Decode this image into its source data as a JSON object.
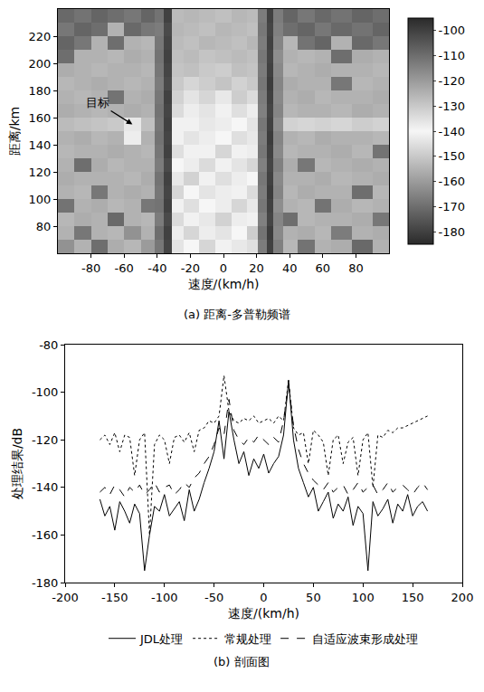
{
  "chart_data": [
    {
      "type": "heatmap",
      "title": "(a) 距离-多普勒频谱",
      "x_label": "速度/(km/h)",
      "y_label": "距离/km",
      "x": [
        -95,
        -85,
        -75,
        -65,
        -55,
        -45,
        -38,
        -34,
        -28,
        -20,
        -10,
        0,
        10,
        18,
        24,
        28,
        32,
        40,
        50,
        60,
        70,
        85,
        95
      ],
      "y": [
        65,
        75,
        85,
        95,
        105,
        115,
        125,
        135,
        145,
        155,
        165,
        175,
        185,
        195,
        205,
        215,
        225,
        235
      ],
      "z": [
        [
          -118,
          -125,
          -110,
          -124,
          -126,
          -120,
          -112,
          -101,
          -136,
          -140,
          -133,
          -141,
          -137,
          -135,
          -113,
          -100,
          -114,
          -126,
          -111,
          -125,
          -124,
          -109,
          -125
        ],
        [
          -125,
          -112,
          -125,
          -126,
          -118,
          -125,
          -110,
          -100,
          -138,
          -133,
          -142,
          -136,
          -140,
          -131,
          -111,
          -99,
          -116,
          -125,
          -124,
          -126,
          -113,
          -125,
          -124
        ],
        [
          -126,
          -124,
          -125,
          -109,
          -125,
          -126,
          -113,
          -102,
          -134,
          -141,
          -137,
          -132,
          -138,
          -139,
          -114,
          -101,
          -115,
          -110,
          -126,
          -125,
          -125,
          -124,
          -112
        ],
        [
          -111,
          -125,
          -124,
          -126,
          -125,
          -112,
          -111,
          -100,
          -139,
          -135,
          -140,
          -138,
          -133,
          -137,
          -112,
          -100,
          -117,
          -125,
          -126,
          -111,
          -124,
          -126,
          -125
        ],
        [
          -125,
          -126,
          -112,
          -125,
          -124,
          -125,
          -112,
          -101,
          -133,
          -140,
          -136,
          -142,
          -139,
          -134,
          -113,
          -99,
          -115,
          -126,
          -124,
          -125,
          -125,
          -110,
          -126
        ],
        [
          -124,
          -125,
          -125,
          -125,
          -126,
          -124,
          -111,
          -100,
          -137,
          -132,
          -141,
          -135,
          -138,
          -140,
          -112,
          -100,
          -116,
          -125,
          -125,
          -124,
          -126,
          -125,
          -124
        ],
        [
          -125,
          -110,
          -124,
          -126,
          -125,
          -125,
          -113,
          -102,
          -140,
          -138,
          -134,
          -139,
          -136,
          -133,
          -114,
          -101,
          -114,
          -124,
          -112,
          -126,
          -125,
          -124,
          -125
        ],
        [
          -126,
          -125,
          -125,
          -124,
          -125,
          -126,
          -112,
          -100,
          -135,
          -141,
          -139,
          -133,
          -141,
          -138,
          -112,
          -100,
          -116,
          -126,
          -125,
          -125,
          -124,
          -126,
          -111
        ],
        [
          -125,
          -124,
          -126,
          -125,
          -138,
          -125,
          -111,
          -101,
          -139,
          -136,
          -142,
          -140,
          -135,
          -137,
          -113,
          -99,
          -115,
          -125,
          -126,
          -124,
          -125,
          -125,
          -126
        ],
        [
          -127,
          -128,
          -129,
          -130,
          -143,
          -128,
          -112,
          -100,
          -141,
          -139,
          -137,
          -142,
          -140,
          -136,
          -112,
          -100,
          -117,
          -132,
          -133,
          -132,
          -133,
          -131,
          -132
        ],
        [
          -124,
          -125,
          -126,
          -125,
          -124,
          -125,
          -111,
          -101,
          -134,
          -138,
          -136,
          -139,
          -135,
          -138,
          -114,
          -101,
          -115,
          -126,
          -125,
          -125,
          -126,
          -124,
          -125
        ],
        [
          -125,
          -126,
          -125,
          -111,
          -125,
          -124,
          -112,
          -100,
          -132,
          -136,
          -133,
          -137,
          -131,
          -134,
          -113,
          -100,
          -116,
          -125,
          -124,
          -126,
          -125,
          -125,
          -124
        ],
        [
          -126,
          -125,
          -124,
          -125,
          -126,
          -125,
          -113,
          -102,
          -130,
          -133,
          -131,
          -129,
          -132,
          -130,
          -112,
          -99,
          -115,
          -124,
          -125,
          -125,
          -112,
          -126,
          -125
        ],
        [
          -124,
          -125,
          -126,
          -125,
          -125,
          -126,
          -112,
          -101,
          -129,
          -128,
          -130,
          -131,
          -128,
          -129,
          -113,
          -100,
          -116,
          -126,
          -125,
          -124,
          -125,
          -125,
          -126
        ],
        [
          -110,
          -125,
          -125,
          -126,
          -124,
          -125,
          -111,
          -100,
          -128,
          -127,
          -129,
          -128,
          -127,
          -128,
          -112,
          -101,
          -117,
          -125,
          -126,
          -125,
          -110,
          -124,
          -125
        ],
        [
          -108,
          -112,
          -125,
          -110,
          -125,
          -126,
          -112,
          -101,
          -127,
          -128,
          -126,
          -127,
          -128,
          -126,
          -113,
          -100,
          -115,
          -126,
          -111,
          -108,
          -125,
          -109,
          -112
        ],
        [
          -112,
          -108,
          -110,
          -125,
          -109,
          -112,
          -113,
          -102,
          -126,
          -127,
          -128,
          -126,
          -127,
          -128,
          -112,
          -101,
          -114,
          -110,
          -108,
          -112,
          -109,
          -111,
          -108
        ],
        [
          -109,
          -111,
          -108,
          -110,
          -112,
          -108,
          -111,
          -100,
          -127,
          -126,
          -127,
          -128,
          -126,
          -127,
          -113,
          -100,
          -113,
          -108,
          -112,
          -109,
          -111,
          -108,
          -110
        ]
      ],
      "zlim": [
        -185,
        -95
      ],
      "zticks": [
        -100,
        -110,
        -120,
        -130,
        -140,
        -150,
        -160,
        -170,
        -180
      ],
      "xlim": [
        -100,
        100
      ],
      "xticks": [
        -80,
        -60,
        -40,
        -20,
        0,
        20,
        40,
        60,
        80
      ],
      "ylim": [
        60,
        240
      ],
      "yticks": [
        80,
        100,
        120,
        140,
        160,
        180,
        200,
        220
      ],
      "annotations": [
        {
          "text": "目标",
          "x": -55,
          "y": 155
        }
      ],
      "grid": false
    },
    {
      "type": "line",
      "title": "(b) 剖面图",
      "x_label": "速度/(km/h)",
      "y_label": "处理结果/dB",
      "x": [
        -165,
        -160,
        -155,
        -150,
        -145,
        -140,
        -135,
        -130,
        -125,
        -120,
        -115,
        -110,
        -105,
        -100,
        -95,
        -90,
        -85,
        -80,
        -75,
        -70,
        -65,
        -60,
        -55,
        -50,
        -45,
        -40,
        -35,
        -30,
        -25,
        -20,
        -15,
        -10,
        -5,
        0,
        5,
        10,
        15,
        20,
        25,
        30,
        35,
        40,
        45,
        50,
        55,
        60,
        65,
        70,
        75,
        80,
        85,
        90,
        95,
        100,
        105,
        110,
        115,
        120,
        125,
        130,
        135,
        140,
        145,
        150,
        155,
        160,
        165
      ],
      "series": [
        {
          "name": "JDL处理",
          "color": "#000000",
          "line_style": "solid",
          "values": [
            -145,
            -152,
            -148,
            -158,
            -146,
            -150,
            -155,
            -147,
            -151,
            -175,
            -160,
            -148,
            -150,
            -143,
            -152,
            -149,
            -146,
            -154,
            -141,
            -150,
            -145,
            -138,
            -132,
            -125,
            -112,
            -128,
            -108,
            -120,
            -130,
            -125,
            -135,
            -128,
            -132,
            -126,
            -134,
            -130,
            -127,
            -118,
            -95,
            -120,
            -132,
            -138,
            -144,
            -140,
            -150,
            -146,
            -142,
            -153,
            -147,
            -150,
            -144,
            -156,
            -148,
            -151,
            -175,
            -146,
            -152,
            -149,
            -145,
            -155,
            -147,
            -150,
            -143,
            -152,
            -148,
            -146,
            -150
          ]
        },
        {
          "name": "常规处理",
          "color": "#000000",
          "line_style": "dot",
          "values": [
            -120,
            -118,
            -122,
            -117,
            -125,
            -118,
            -119,
            -135,
            -120,
            -117,
            -160,
            -122,
            -118,
            -120,
            -130,
            -119,
            -118,
            -121,
            -117,
            -125,
            -116,
            -115,
            -112,
            -113,
            -110,
            -93,
            -108,
            -112,
            -113,
            -111,
            -112,
            -110,
            -113,
            -112,
            -111,
            -113,
            -110,
            -112,
            -95,
            -115,
            -118,
            -117,
            -130,
            -116,
            -118,
            -121,
            -135,
            -120,
            -118,
            -130,
            -121,
            -119,
            -135,
            -120,
            -117,
            -140,
            -118,
            -119,
            -116,
            -117,
            -115,
            -115,
            -114,
            -113,
            -112,
            -111,
            -110
          ]
        },
        {
          "name": "自适应波束形成处理",
          "color": "#000000",
          "line_style": "dash",
          "values": [
            -142,
            -140,
            -143,
            -139,
            -141,
            -144,
            -140,
            -142,
            -139,
            -143,
            -141,
            -138,
            -142,
            -140,
            -139,
            -143,
            -141,
            -138,
            -140,
            -136,
            -134,
            -130,
            -127,
            -122,
            -115,
            -118,
            -103,
            -116,
            -120,
            -122,
            -119,
            -121,
            -118,
            -120,
            -122,
            -119,
            -121,
            -112,
            -97,
            -114,
            -124,
            -130,
            -134,
            -137,
            -139,
            -141,
            -138,
            -142,
            -140,
            -139,
            -143,
            -141,
            -138,
            -142,
            -140,
            -139,
            -143,
            -141,
            -138,
            -142,
            -140,
            -139,
            -141,
            -143,
            -140,
            -138,
            -141
          ]
        }
      ],
      "xlim": [
        -200,
        200
      ],
      "xticks": [
        -200,
        -150,
        -100,
        -50,
        0,
        50,
        100,
        150,
        200
      ],
      "ylim": [
        -180,
        -80
      ],
      "yticks": [
        -180,
        -160,
        -140,
        -120,
        -100,
        -80
      ],
      "legend": "bottom",
      "grid": false
    }
  ]
}
